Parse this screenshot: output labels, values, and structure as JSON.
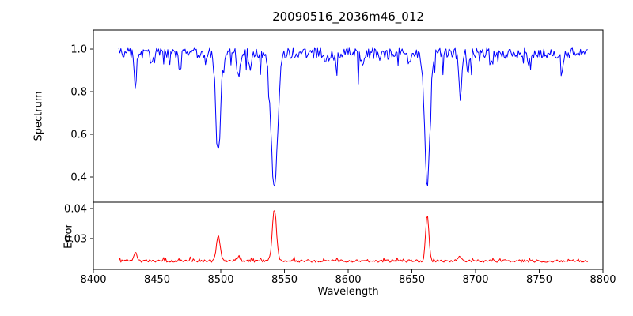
{
  "figure": {
    "background": "#ffffff"
  },
  "chart_data": {
    "type": "line",
    "title": "20090516_2036m46_012",
    "xlabel": "Wavelength",
    "x_axis": {
      "range": [
        8400,
        8800
      ],
      "ticks": [
        8400,
        8450,
        8500,
        8550,
        8600,
        8650,
        8700,
        8750,
        8800
      ]
    },
    "x_start": 8420,
    "x_end": 8788,
    "x_step": 0.8,
    "seed": 20090516,
    "legend": "none",
    "grid": false,
    "subplots": [
      {
        "name": "spectrum",
        "ylabel": "Spectrum",
        "y_ticks": [
          0.4,
          0.6,
          0.8,
          1.0
        ],
        "y_range": [
          0.2815,
          1.089
        ],
        "color": "#0000ff",
        "continuum": 0.98,
        "noise": 0.05,
        "spike_prob": 0.12,
        "spike_depth": 0.13,
        "absorption_lines": [
          {
            "center": 8498.0,
            "depth": 0.47,
            "sigma": 1.8
          },
          {
            "center": 8542.1,
            "depth": 0.64,
            "sigma": 2.5
          },
          {
            "center": 8662.1,
            "depth": 0.62,
            "sigma": 2.0
          },
          {
            "center": 8433.0,
            "depth": 0.17,
            "sigma": 0.9
          },
          {
            "center": 8446.0,
            "depth": 0.07,
            "sigma": 0.8
          },
          {
            "center": 8468.0,
            "depth": 0.08,
            "sigma": 0.9
          },
          {
            "center": 8514.0,
            "depth": 0.13,
            "sigma": 1.0
          },
          {
            "center": 8523.0,
            "depth": 0.07,
            "sigma": 0.8
          },
          {
            "center": 8582.0,
            "depth": 0.05,
            "sigma": 0.8
          },
          {
            "center": 8611.0,
            "depth": 0.06,
            "sigma": 0.8
          },
          {
            "center": 8648.0,
            "depth": 0.05,
            "sigma": 0.8
          },
          {
            "center": 8688.0,
            "depth": 0.2,
            "sigma": 1.1
          },
          {
            "center": 8694.0,
            "depth": 0.08,
            "sigma": 0.8
          },
          {
            "center": 8713.0,
            "depth": 0.06,
            "sigma": 0.8
          },
          {
            "center": 8742.0,
            "depth": 0.05,
            "sigma": 0.8
          },
          {
            "center": 8768.0,
            "depth": 0.07,
            "sigma": 0.9
          }
        ]
      },
      {
        "name": "error",
        "ylabel": "Error",
        "y_ticks": [
          0.03,
          0.04
        ],
        "y_range": [
          0.0197,
          0.0421
        ],
        "color": "#ff0000",
        "baseline": 0.0225,
        "noise": 0.0009,
        "spike_prob": 0.08,
        "spike_height": 0.0012,
        "peaks": [
          {
            "center": 8498.0,
            "height": 0.0085,
            "sigma": 1.5
          },
          {
            "center": 8542.1,
            "height": 0.0175,
            "sigma": 1.6
          },
          {
            "center": 8662.1,
            "height": 0.0155,
            "sigma": 1.3
          },
          {
            "center": 8433.0,
            "height": 0.003,
            "sigma": 1.2
          },
          {
            "center": 8514.0,
            "height": 0.0015,
            "sigma": 1.2
          },
          {
            "center": 8688.0,
            "height": 0.0015,
            "sigma": 1.2
          }
        ]
      }
    ]
  }
}
